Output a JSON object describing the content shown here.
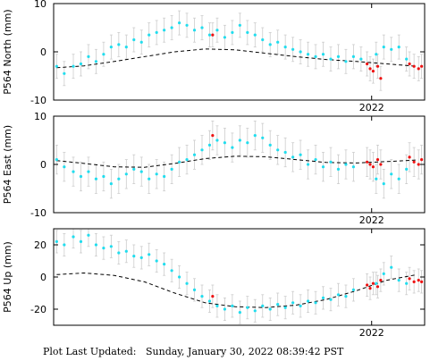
{
  "footer": {
    "label": "Plot Last Updated:",
    "timestamp": "Sunday, January 30, 2022 08:39:42 PST"
  },
  "colors": {
    "observed": "#22ddee",
    "recent": "#ee1111",
    "error_bar": "#cccccc",
    "model": "#000000"
  },
  "chart_data": [
    {
      "type": "scatter",
      "ylabel": "P564 North (mm)",
      "ylim": [
        -10,
        10
      ],
      "yticks": [
        10,
        0,
        -10
      ],
      "x_tick_label": "2022",
      "x_tick_value": 2022.0,
      "xlim": [
        2019.9,
        2022.35
      ],
      "error_bar_mm": 2.5,
      "model": [
        [
          2019.92,
          -3.3
        ],
        [
          2020.1,
          -2.9
        ],
        [
          2020.3,
          -2.0
        ],
        [
          2020.5,
          -1.0
        ],
        [
          2020.7,
          0.0
        ],
        [
          2020.9,
          0.6
        ],
        [
          2021.1,
          0.4
        ],
        [
          2021.3,
          -0.3
        ],
        [
          2021.5,
          -1.0
        ],
        [
          2021.7,
          -1.6
        ],
        [
          2021.9,
          -2.0
        ],
        [
          2022.1,
          -2.5
        ],
        [
          2022.3,
          -3.0
        ]
      ],
      "observed": [
        [
          2019.92,
          -3.0
        ],
        [
          2019.97,
          -4.5
        ],
        [
          2020.03,
          -3.0
        ],
        [
          2020.08,
          -2.5
        ],
        [
          2020.13,
          -1.0
        ],
        [
          2020.18,
          -2.0
        ],
        [
          2020.23,
          -0.5
        ],
        [
          2020.28,
          1.0
        ],
        [
          2020.33,
          1.5
        ],
        [
          2020.38,
          1.0
        ],
        [
          2020.43,
          2.5
        ],
        [
          2020.48,
          2.0
        ],
        [
          2020.53,
          3.5
        ],
        [
          2020.58,
          4.0
        ],
        [
          2020.63,
          4.5
        ],
        [
          2020.68,
          5.0
        ],
        [
          2020.73,
          6.0
        ],
        [
          2020.78,
          5.5
        ],
        [
          2020.83,
          4.5
        ],
        [
          2020.88,
          5.0
        ],
        [
          2020.93,
          3.5
        ],
        [
          2020.98,
          4.5
        ],
        [
          2021.03,
          3.0
        ],
        [
          2021.08,
          4.0
        ],
        [
          2021.13,
          5.5
        ],
        [
          2021.18,
          4.0
        ],
        [
          2021.23,
          3.5
        ],
        [
          2021.28,
          2.5
        ],
        [
          2021.33,
          1.5
        ],
        [
          2021.38,
          2.0
        ],
        [
          2021.43,
          1.0
        ],
        [
          2021.48,
          0.5
        ],
        [
          2021.53,
          0.0
        ],
        [
          2021.58,
          -0.5
        ],
        [
          2021.63,
          -1.0
        ],
        [
          2021.68,
          -0.5
        ],
        [
          2021.73,
          -1.5
        ],
        [
          2021.78,
          -1.0
        ],
        [
          2021.83,
          -2.0
        ],
        [
          2021.88,
          -1.0
        ],
        [
          2021.93,
          -1.5
        ],
        [
          2022.03,
          -0.5
        ],
        [
          2022.08,
          1.0
        ],
        [
          2022.13,
          0.5
        ],
        [
          2022.18,
          1.0
        ],
        [
          2022.23,
          -1.5
        ]
      ],
      "recent": [
        [
          2020.95,
          3.5
        ],
        [
          2021.97,
          -2.5
        ],
        [
          2021.99,
          -3.5
        ],
        [
          2022.01,
          -4.0
        ],
        [
          2022.04,
          -3.0
        ],
        [
          2022.06,
          -5.5
        ],
        [
          2022.25,
          -2.5
        ],
        [
          2022.28,
          -3.0
        ],
        [
          2022.31,
          -3.5
        ],
        [
          2022.33,
          -3.0
        ]
      ]
    },
    {
      "type": "scatter",
      "ylabel": "P564 East (mm)",
      "ylim": [
        -10,
        10
      ],
      "yticks": [
        10,
        0,
        -10
      ],
      "x_tick_label": "2022",
      "x_tick_value": 2022.0,
      "xlim": [
        2019.9,
        2022.35
      ],
      "error_bar_mm": 3.0,
      "model": [
        [
          2019.92,
          0.8
        ],
        [
          2020.1,
          0.2
        ],
        [
          2020.3,
          -0.5
        ],
        [
          2020.5,
          -0.6
        ],
        [
          2020.7,
          0.2
        ],
        [
          2020.9,
          1.2
        ],
        [
          2021.1,
          1.7
        ],
        [
          2021.3,
          1.6
        ],
        [
          2021.5,
          1.0
        ],
        [
          2021.7,
          0.4
        ],
        [
          2021.9,
          0.3
        ],
        [
          2022.1,
          0.6
        ],
        [
          2022.3,
          0.9
        ]
      ],
      "observed": [
        [
          2019.92,
          1.0
        ],
        [
          2019.97,
          -0.5
        ],
        [
          2020.03,
          -1.5
        ],
        [
          2020.08,
          -2.5
        ],
        [
          2020.13,
          -1.5
        ],
        [
          2020.18,
          -3.0
        ],
        [
          2020.23,
          -2.5
        ],
        [
          2020.28,
          -4.0
        ],
        [
          2020.33,
          -3.0
        ],
        [
          2020.38,
          -2.0
        ],
        [
          2020.43,
          -1.0
        ],
        [
          2020.48,
          -1.5
        ],
        [
          2020.53,
          -3.0
        ],
        [
          2020.58,
          -2.0
        ],
        [
          2020.63,
          -2.5
        ],
        [
          2020.68,
          -1.0
        ],
        [
          2020.73,
          0.5
        ],
        [
          2020.78,
          1.0
        ],
        [
          2020.83,
          2.0
        ],
        [
          2020.88,
          3.0
        ],
        [
          2020.93,
          4.0
        ],
        [
          2020.98,
          5.0
        ],
        [
          2021.03,
          4.5
        ],
        [
          2021.08,
          3.5
        ],
        [
          2021.13,
          5.0
        ],
        [
          2021.18,
          4.5
        ],
        [
          2021.23,
          6.0
        ],
        [
          2021.28,
          5.5
        ],
        [
          2021.33,
          4.0
        ],
        [
          2021.38,
          3.0
        ],
        [
          2021.43,
          2.5
        ],
        [
          2021.48,
          1.5
        ],
        [
          2021.53,
          2.0
        ],
        [
          2021.58,
          0.0
        ],
        [
          2021.63,
          1.0
        ],
        [
          2021.68,
          -0.5
        ],
        [
          2021.73,
          0.5
        ],
        [
          2021.78,
          -1.0
        ],
        [
          2021.83,
          0.0
        ],
        [
          2021.88,
          -0.5
        ],
        [
          2022.03,
          -3.0
        ],
        [
          2022.08,
          -4.0
        ],
        [
          2022.13,
          -2.0
        ],
        [
          2022.18,
          -3.0
        ],
        [
          2022.23,
          -1.0
        ]
      ],
      "recent": [
        [
          2020.95,
          6.0
        ],
        [
          2021.97,
          0.5
        ],
        [
          2021.99,
          0.0
        ],
        [
          2022.01,
          -0.5
        ],
        [
          2022.04,
          1.0
        ],
        [
          2022.06,
          0.0
        ],
        [
          2022.25,
          1.5
        ],
        [
          2022.28,
          0.5
        ],
        [
          2022.31,
          0.0
        ],
        [
          2022.33,
          1.0
        ]
      ]
    },
    {
      "type": "scatter",
      "ylabel": "P564 Up (mm)",
      "ylim": [
        -30,
        30
      ],
      "yticks": [
        20,
        0,
        -20
      ],
      "x_tick_label": "2022",
      "x_tick_value": 2022.0,
      "xlim": [
        2019.9,
        2022.35
      ],
      "error_bar_mm": 7.0,
      "model": [
        [
          2019.92,
          1.5
        ],
        [
          2020.1,
          2.5
        ],
        [
          2020.3,
          1.0
        ],
        [
          2020.5,
          -3.0
        ],
        [
          2020.7,
          -10.0
        ],
        [
          2020.9,
          -16.0
        ],
        [
          2021.1,
          -18.5
        ],
        [
          2021.3,
          -19.0
        ],
        [
          2021.5,
          -17.5
        ],
        [
          2021.7,
          -14.0
        ],
        [
          2021.9,
          -8.5
        ],
        [
          2022.1,
          -2.0
        ],
        [
          2022.3,
          1.5
        ]
      ],
      "observed": [
        [
          2019.92,
          22.0
        ],
        [
          2019.97,
          20.0
        ],
        [
          2020.03,
          25.0
        ],
        [
          2020.08,
          22.0
        ],
        [
          2020.13,
          26.0
        ],
        [
          2020.18,
          20.0
        ],
        [
          2020.23,
          18.0
        ],
        [
          2020.28,
          19.0
        ],
        [
          2020.33,
          15.0
        ],
        [
          2020.38,
          16.0
        ],
        [
          2020.43,
          13.0
        ],
        [
          2020.48,
          12.0
        ],
        [
          2020.53,
          14.0
        ],
        [
          2020.58,
          10.0
        ],
        [
          2020.63,
          8.0
        ],
        [
          2020.68,
          4.0
        ],
        [
          2020.73,
          0.0
        ],
        [
          2020.78,
          -4.0
        ],
        [
          2020.83,
          -8.0
        ],
        [
          2020.88,
          -12.0
        ],
        [
          2020.93,
          -15.0
        ],
        [
          2020.98,
          -18.0
        ],
        [
          2021.03,
          -20.0
        ],
        [
          2021.08,
          -18.0
        ],
        [
          2021.13,
          -22.0
        ],
        [
          2021.18,
          -19.0
        ],
        [
          2021.23,
          -21.0
        ],
        [
          2021.28,
          -18.0
        ],
        [
          2021.33,
          -20.0
        ],
        [
          2021.38,
          -17.0
        ],
        [
          2021.43,
          -19.0
        ],
        [
          2021.48,
          -16.0
        ],
        [
          2021.53,
          -18.0
        ],
        [
          2021.58,
          -15.0
        ],
        [
          2021.63,
          -16.0
        ],
        [
          2021.68,
          -13.0
        ],
        [
          2021.73,
          -14.0
        ],
        [
          2021.78,
          -11.0
        ],
        [
          2021.83,
          -12.0
        ],
        [
          2021.88,
          -8.0
        ],
        [
          2022.03,
          -4.0
        ],
        [
          2022.08,
          2.0
        ],
        [
          2022.13,
          6.0
        ],
        [
          2022.18,
          -2.0
        ],
        [
          2022.23,
          -4.0
        ]
      ],
      "recent": [
        [
          2020.95,
          -12.0
        ],
        [
          2021.97,
          -5.0
        ],
        [
          2021.99,
          -7.0
        ],
        [
          2022.01,
          -4.0
        ],
        [
          2022.04,
          -6.0
        ],
        [
          2022.06,
          -2.0
        ],
        [
          2022.25,
          -1.0
        ],
        [
          2022.28,
          -3.0
        ],
        [
          2022.31,
          -2.0
        ],
        [
          2022.33,
          -3.0
        ]
      ]
    }
  ]
}
